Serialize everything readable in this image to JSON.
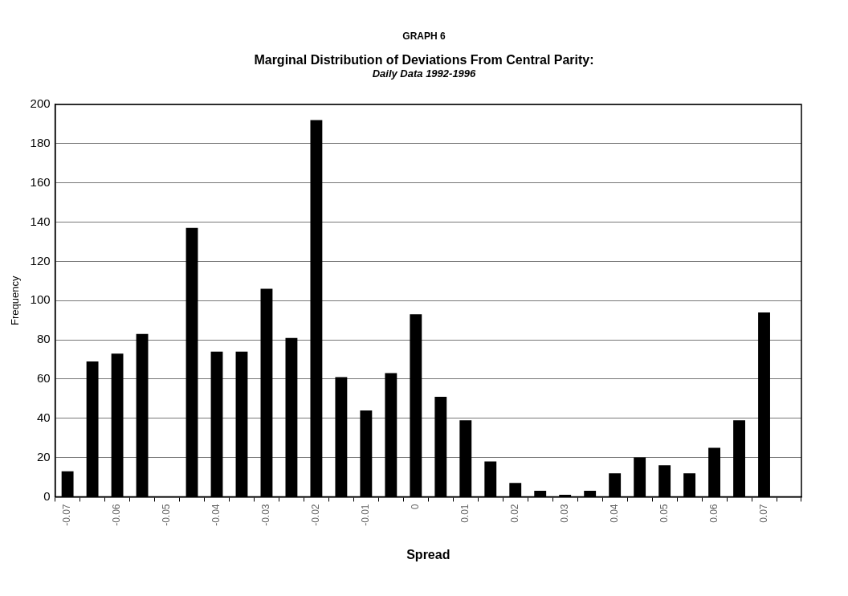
{
  "chart_data": {
    "type": "bar",
    "title": "Marginal Distribution of Deviations From Central Parity:",
    "subtitle": "Daily Data 1992-1996",
    "annotations": [
      "GRAPH 6"
    ],
    "xlabel": "Spread",
    "ylabel": "Frequency",
    "categories": [
      "-0.07",
      null,
      "-0.06",
      null,
      "-0.05",
      null,
      "-0.04",
      null,
      "-0.03",
      null,
      "-0.02",
      null,
      "-0.01",
      null,
      "0",
      null,
      "0.01",
      null,
      "0.02",
      null,
      "0.03",
      null,
      "0.04",
      null,
      "0.05",
      null,
      "0.06",
      null,
      "0.07",
      null
    ],
    "values": [
      13,
      69,
      73,
      83,
      0,
      137,
      74,
      74,
      106,
      81,
      192,
      61,
      44,
      63,
      93,
      51,
      39,
      18,
      7,
      3,
      1,
      3,
      12,
      20,
      16,
      12,
      25,
      39,
      94,
      0
    ],
    "color": "#000000",
    "ylim": [
      0,
      200
    ],
    "yticks": [
      0,
      20,
      40,
      60,
      80,
      100,
      120,
      140,
      160,
      180,
      200
    ],
    "grid": "y",
    "legend": false
  }
}
